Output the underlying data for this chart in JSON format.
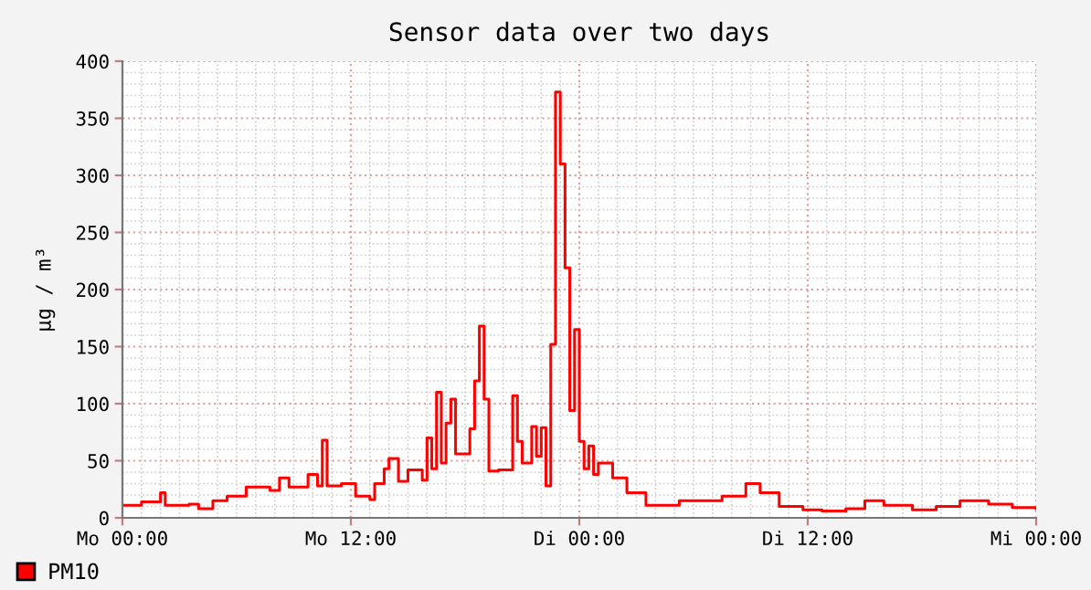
{
  "chart_data": {
    "type": "step",
    "title": "Sensor data over two days",
    "ylabel": "µg / m³",
    "categories": [
      "Mo 00:00",
      null,
      null,
      null,
      null,
      null,
      null,
      null,
      null,
      null,
      null,
      null,
      null,
      null,
      null,
      null,
      null,
      null,
      null,
      null,
      null,
      null,
      null,
      null,
      null,
      null,
      null,
      null,
      null,
      null,
      null,
      null,
      null,
      null,
      null,
      null,
      null,
      null,
      null,
      null,
      null,
      null,
      null,
      null,
      null,
      null,
      null,
      null,
      "Mo 12:00",
      null,
      null,
      null,
      null,
      null,
      null,
      null,
      null,
      null,
      null,
      null,
      null,
      null,
      null,
      null,
      null,
      null,
      null,
      null,
      null,
      null,
      null,
      null,
      null,
      null,
      null,
      null,
      null,
      null,
      null,
      null,
      null,
      null,
      null,
      null,
      null,
      null,
      null,
      null,
      null,
      null,
      null,
      null,
      null,
      null,
      null,
      null,
      "Di 00:00",
      null,
      null,
      null,
      null,
      null,
      null,
      null,
      null,
      null,
      null,
      null,
      null,
      null,
      null,
      null,
      null,
      null,
      null,
      null,
      null,
      null,
      null,
      null,
      null,
      null,
      null,
      null,
      null,
      null,
      null,
      null,
      null,
      null,
      null,
      null,
      null,
      null,
      null,
      null,
      null,
      null,
      null,
      null,
      null,
      null,
      null,
      null,
      "Di 12:00",
      null,
      null,
      null,
      null,
      null,
      null,
      null,
      null,
      null,
      null,
      null,
      null,
      null,
      null,
      null,
      null,
      null,
      null,
      null,
      null,
      null,
      null,
      null,
      null,
      null,
      null,
      null,
      null,
      null,
      null,
      null,
      null,
      null,
      null,
      null,
      null,
      null,
      null,
      null,
      null,
      null,
      null,
      null,
      null,
      null,
      null,
      null,
      "Mi 00:00"
    ],
    "series": [
      {
        "name": "PM10",
        "color": "#ff0000",
        "values": [
          11,
          11,
          11,
          11,
          14,
          14,
          14,
          14,
          22,
          11,
          11,
          11,
          11,
          11,
          12,
          12,
          8,
          8,
          8,
          15,
          15,
          15,
          19,
          19,
          19,
          19,
          27,
          27,
          27,
          27,
          27,
          24,
          24,
          35,
          35,
          27,
          27,
          27,
          27,
          38,
          38,
          28,
          68,
          28,
          28,
          28,
          30,
          30,
          30,
          19,
          19,
          19,
          16,
          30,
          30,
          43,
          52,
          52,
          32,
          32,
          42,
          42,
          42,
          33,
          70,
          43,
          110,
          48,
          83,
          104,
          56,
          56,
          56,
          78,
          120,
          168,
          104,
          41,
          41,
          42,
          42,
          42,
          107,
          67,
          48,
          48,
          80,
          54,
          79,
          28,
          152,
          373,
          310,
          219,
          94,
          165,
          67,
          43,
          63,
          38,
          48,
          48,
          48,
          35,
          35,
          35,
          22,
          22,
          22,
          22,
          11,
          11,
          11,
          11,
          11,
          11,
          11,
          15,
          15,
          15,
          15,
          15,
          15,
          15,
          15,
          15,
          19,
          19,
          19,
          19,
          19,
          30,
          30,
          30,
          22,
          22,
          22,
          22,
          10,
          10,
          10,
          10,
          10,
          7,
          7,
          7,
          7,
          6,
          6,
          6,
          6,
          6,
          8,
          8,
          8,
          8,
          15,
          15,
          15,
          15,
          11,
          11,
          11,
          11,
          11,
          11,
          7,
          7,
          7,
          7,
          7,
          10,
          10,
          10,
          10,
          10,
          15,
          15,
          15,
          15,
          15,
          15,
          12,
          12,
          12,
          12,
          12,
          9,
          9,
          9,
          9,
          9,
          8
        ]
      }
    ],
    "ylim": [
      0,
      400
    ],
    "yticks": [
      0,
      50,
      100,
      150,
      200,
      250,
      300,
      350,
      400
    ],
    "grid": true,
    "legend": "bottom left",
    "line_style": "solid",
    "marker": "none"
  }
}
